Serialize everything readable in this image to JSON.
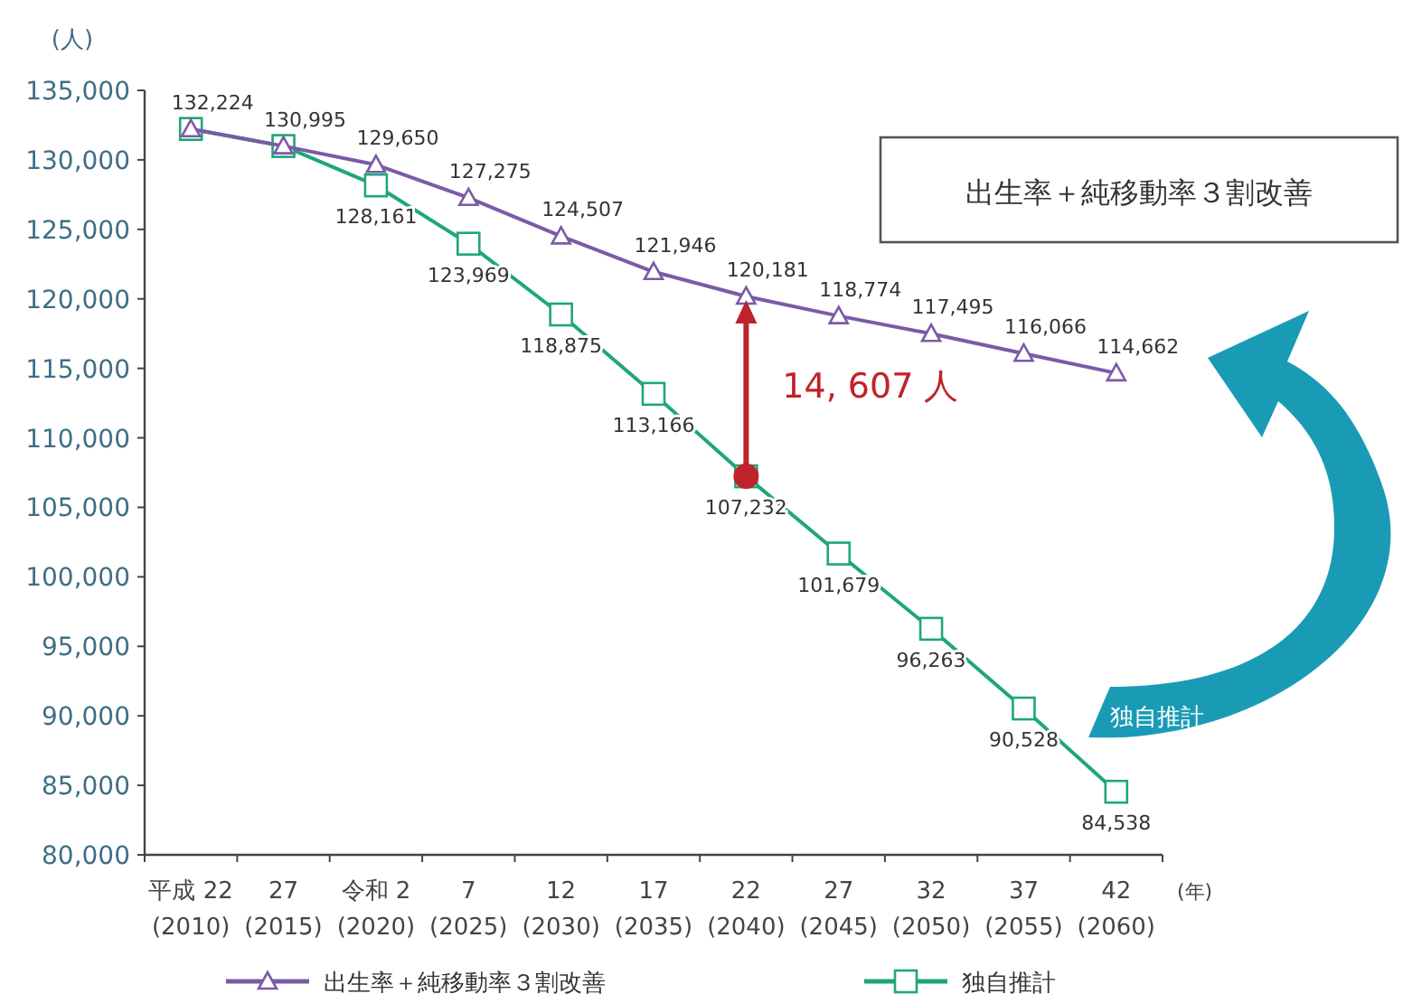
{
  "chart_data": {
    "type": "line",
    "ylabel": "(人)",
    "xlabel": "(年)",
    "categories": [
      "平成 22\n(2010)",
      "27\n(2015)",
      "令和 2\n(2020)",
      "7\n(2025)",
      "12\n(2030)",
      "17\n(2035)",
      "22\n(2040)",
      "27\n(2045)",
      "32\n(2050)",
      "37\n(2055)",
      "42\n(2060)"
    ],
    "series": [
      {
        "name": "出生率＋純移動率３割改善",
        "color": "#7b5aa6",
        "marker": "triangle",
        "values": [
          132224,
          130995,
          129650,
          127275,
          124507,
          121946,
          120181,
          118774,
          117495,
          116066,
          114662
        ],
        "value_labels": [
          "132,224",
          "130,995",
          "129,650",
          "127,275",
          "124,507",
          "121,946",
          "120,181",
          "118,774",
          "117,495",
          "116,066",
          "114,662"
        ]
      },
      {
        "name": "独自推計",
        "color": "#1fa67a",
        "marker": "square",
        "values": [
          132224,
          130995,
          128161,
          123969,
          118875,
          113166,
          107232,
          101679,
          96263,
          90528,
          84538
        ],
        "value_labels": [
          null,
          null,
          "128,161",
          "123,969",
          "118,875",
          "113,166",
          "107,232",
          "101,679",
          "96,263",
          "90,528",
          "84,538"
        ]
      }
    ],
    "ylim": [
      80000,
      135000
    ],
    "yticks": [
      {
        "value": 80000,
        "label": "80,000"
      },
      {
        "value": 85000,
        "label": "85,000"
      },
      {
        "value": 90000,
        "label": "90,000"
      },
      {
        "value": 95000,
        "label": "95,000"
      },
      {
        "value": 100000,
        "label": "100,000"
      },
      {
        "value": 105000,
        "label": "105,000"
      },
      {
        "value": 110000,
        "label": "110,000"
      },
      {
        "value": 115000,
        "label": "115,000"
      },
      {
        "value": 120000,
        "label": "120,000"
      },
      {
        "value": 125000,
        "label": "125,000"
      },
      {
        "value": 130000,
        "label": "130,000"
      },
      {
        "value": 135000,
        "label": "135,000"
      }
    ],
    "grid": false,
    "legend": "bottom",
    "annotations": [
      "出生率＋純移動率３割改善",
      "独自推計",
      "14, 607 人"
    ]
  }
}
